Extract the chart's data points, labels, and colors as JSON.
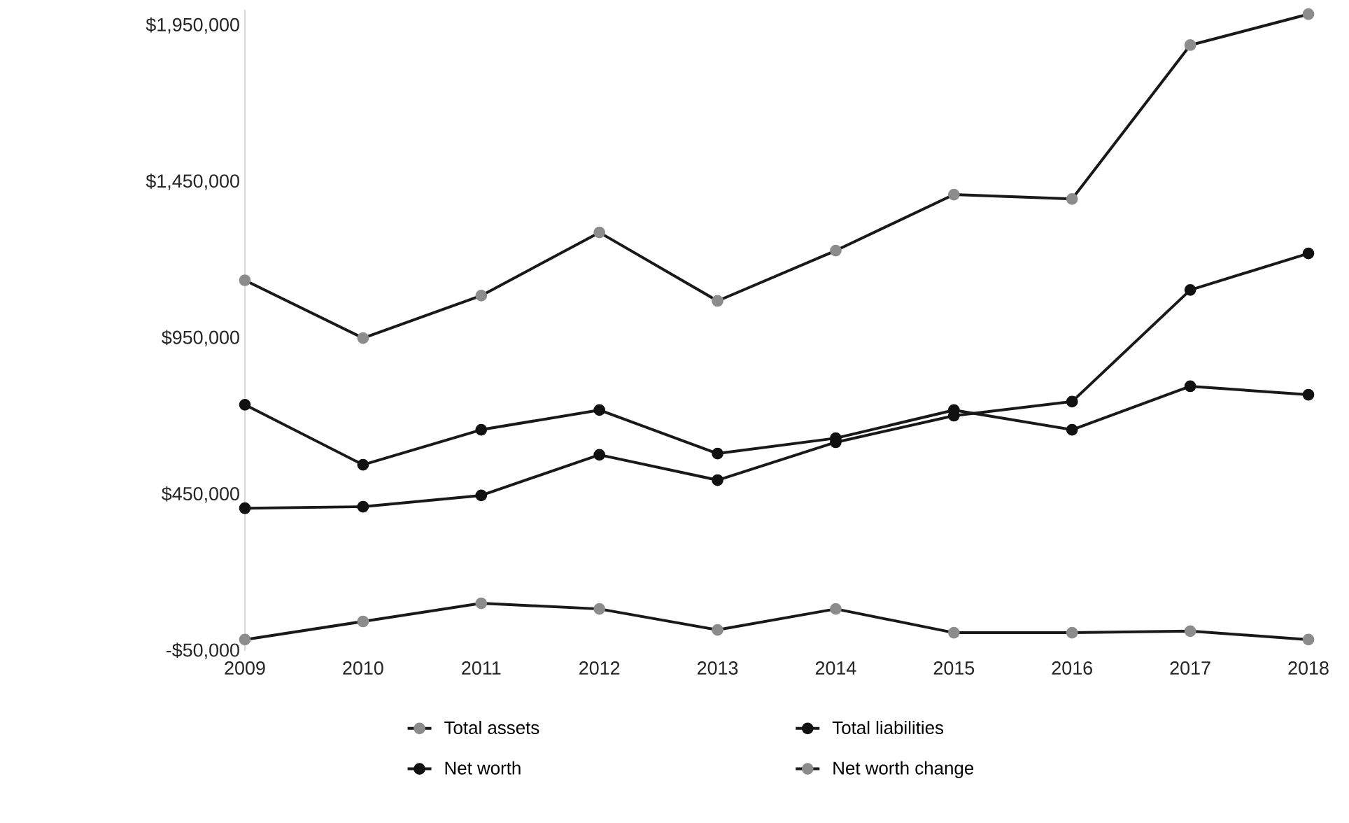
{
  "chart_data": {
    "type": "line",
    "categories": [
      "2009",
      "2010",
      "2011",
      "2012",
      "2013",
      "2014",
      "2015",
      "2016",
      "2017",
      "2018"
    ],
    "series": [
      {
        "name": "Total assets",
        "color": "#8c8c8c",
        "values": [
          1135000,
          950000,
          1086000,
          1288000,
          1069000,
          1230000,
          1409000,
          1395000,
          1887000,
          1986000
        ]
      },
      {
        "name": "Total liabilities",
        "color": "#111111",
        "values": [
          406000,
          411000,
          447000,
          577000,
          496000,
          617000,
          702000,
          747000,
          1104000,
          1221000
        ]
      },
      {
        "name": "Net worth",
        "color": "#111111",
        "values": [
          737000,
          545000,
          657000,
          720000,
          581000,
          630000,
          720000,
          657000,
          796000,
          769000
        ]
      },
      {
        "name": "Net worth change",
        "color": "#8c8c8c",
        "values": [
          -14000,
          44000,
          102000,
          84000,
          17000,
          84000,
          8000,
          8000,
          13000,
          -14000
        ]
      }
    ],
    "ylim": [
      -50000,
      2000000
    ],
    "yticks": [
      {
        "value": -50000,
        "label": "-$50,000"
      },
      {
        "value": 450000,
        "label": "$450,000"
      },
      {
        "value": 950000,
        "label": "$950,000"
      },
      {
        "value": 1450000,
        "label": "$1,450,000"
      },
      {
        "value": 1950000,
        "label": "$1,950,000"
      }
    ],
    "grid": false,
    "legend": "bottom",
    "marker": "circle",
    "line_style": "solid"
  }
}
